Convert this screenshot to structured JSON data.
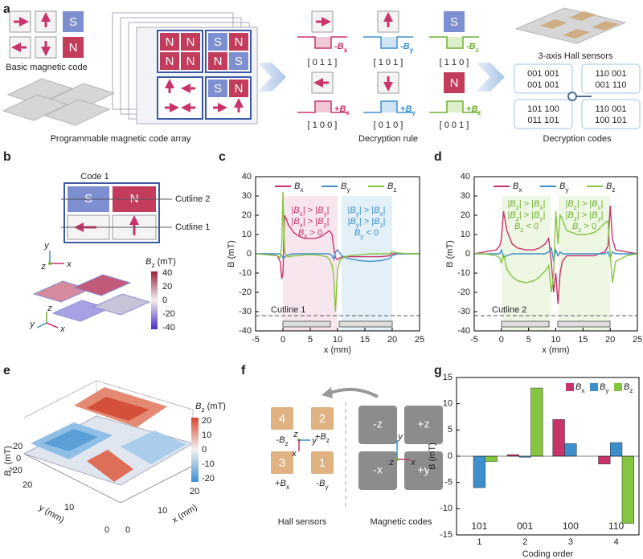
{
  "panel_labels": {
    "a": "a",
    "b": "b",
    "c": "c",
    "d": "d",
    "e": "e",
    "f": "f",
    "g": "g"
  },
  "panel_a": {
    "basic_code_letters": [
      "S",
      "N"
    ],
    "basic_code_label": "Basic magnetic code",
    "array_letters": [
      "N",
      "N",
      "N",
      "N",
      "S",
      "N",
      "N",
      "S",
      "S",
      "N"
    ],
    "array_label": "Programmable magnetic code array",
    "rule_letters": [
      "S",
      "N"
    ],
    "rule_field_labels": [
      "-Bx",
      "-By",
      "-Bz",
      "+Bx",
      "+By",
      "+Bz"
    ],
    "rule_codes": [
      "[ 0 1 1 ]",
      "[ 1 0 1 ]",
      "[ 1 1 0 ]",
      "[ 1 0 0 ]",
      "[ 0 1 0 ]",
      "[ 0 0 1 ]"
    ],
    "rule_label": "Decryption rule",
    "sensor_label": "3-axis Hall sensors",
    "codes": [
      [
        "001 001",
        "001 001"
      ],
      [
        "110 001",
        "001 110"
      ],
      [
        "101 100",
        "011 101"
      ],
      [
        "110 001",
        "100 101"
      ]
    ],
    "codes_label": "Decryption codes"
  },
  "panel_b": {
    "code_title": "Code 1",
    "letters": [
      "S",
      "N"
    ],
    "cutlines": [
      "Cutline 2",
      "Cutline 1"
    ],
    "axes": [
      "y",
      "z",
      "x"
    ],
    "axes_3d": [
      "z",
      "y",
      "x"
    ],
    "colorbar_label": "Bz (mT)",
    "colorbar_ticks": [
      "40",
      "20",
      "0",
      "-20",
      "-40"
    ]
  },
  "panel_e": {
    "colorbar_label": "Bz (mT)",
    "colorbar_ticks": [
      "20",
      "10",
      "0",
      "-10",
      "-20"
    ],
    "z_label": "Bz (mT)",
    "z_ticks": [
      "20",
      "0",
      "-20"
    ],
    "y_label": "y (mm)",
    "y_ticks": [
      "20",
      "10",
      "0"
    ],
    "x_label": "x (mm)",
    "x_ticks": [
      "0",
      "10",
      "20"
    ]
  },
  "panel_f": {
    "sensors": [
      {
        "number": "4",
        "field": "-Bz"
      },
      {
        "number": "2",
        "field": "+Bz"
      },
      {
        "number": "3",
        "field": "+Bx"
      },
      {
        "number": "1",
        "field": "-By"
      }
    ],
    "sensor_axes": [
      "z",
      "y",
      "x"
    ],
    "codes": [
      "-z",
      "+z",
      "-x",
      "+y"
    ],
    "code_axes": [
      "y",
      "z",
      "x"
    ],
    "sensors_label": "Hall sensors",
    "codes_label": "Magnetic codes"
  },
  "chart_data": [
    {
      "type": "line",
      "xlabel": "x (mm)",
      "ylabel": "B (mT)",
      "annotations": [
        "|Bx| > |By|",
        "|Bx| > |Bz|",
        "Bx > 0",
        "|By| > |Bx|",
        "|By| > |Bz|",
        "By < 0",
        "Cutline 1"
      ],
      "x": [
        -5,
        -3,
        -1,
        -0.5,
        -0.2,
        0,
        0.3,
        0.6,
        1,
        2,
        3,
        4,
        5,
        6,
        7,
        8,
        8.5,
        9,
        9.3,
        9.6,
        10,
        10.5,
        11,
        12,
        14,
        16,
        18,
        19.5,
        20,
        21,
        23,
        25
      ],
      "series": [
        {
          "name": "Bx",
          "color": "#c8336b",
          "values": [
            0,
            0,
            -1,
            -4,
            -13,
            -10,
            20,
            18,
            15,
            11,
            9,
            8,
            8,
            8,
            9,
            11,
            12,
            10,
            3,
            -2,
            -3,
            -2,
            -1.5,
            -1.5,
            -1.5,
            -1.5,
            -1.5,
            -1,
            0,
            0,
            0,
            0
          ]
        },
        {
          "name": "By",
          "color": "#3d8fcc",
          "values": [
            0,
            0,
            0,
            0,
            -1,
            -2,
            -2,
            -1,
            -0.5,
            0,
            0,
            0,
            0,
            0,
            0,
            0,
            0,
            -1,
            -3,
            1,
            2,
            0,
            -1.5,
            -2.5,
            -3.5,
            -4,
            -3.5,
            -2.5,
            -1,
            0,
            0,
            0
          ]
        },
        {
          "name": "Bz",
          "color": "#86c540",
          "values": [
            0,
            -0.5,
            -1,
            -2,
            5,
            32,
            2,
            -1,
            -1.5,
            -1,
            -1,
            -0.5,
            -0.5,
            -0.5,
            -1,
            -1.5,
            -3,
            -6,
            -12,
            -30,
            -8,
            -3,
            -2,
            -1,
            -0.5,
            0,
            0,
            0,
            1,
            0.5,
            0,
            0
          ]
        }
      ],
      "xlim": [
        -5,
        25
      ],
      "xticks": [
        -5,
        0,
        5,
        10,
        15,
        20,
        25
      ],
      "ylim": [
        -40,
        40
      ],
      "yticks": [
        -40,
        -30,
        -20,
        -10,
        0,
        10,
        20,
        30,
        40
      ],
      "grid": false,
      "legend": "top"
    },
    {
      "type": "line",
      "xlabel": "x (mm)",
      "ylabel": "B (mT)",
      "annotations": [
        "|Bz| > |Bx|",
        "|Bz| > |By|",
        "Bz < 0",
        "|Bz| > |Bx|",
        "|Bz| > |By|",
        "Bz > 0",
        "Cutline 2"
      ],
      "x": [
        -5,
        -3,
        -1,
        -0.3,
        0,
        0.4,
        1,
        2,
        3,
        4.5,
        6,
        7,
        8,
        8.7,
        9.2,
        9.6,
        10,
        10.4,
        10.8,
        11.2,
        12,
        14,
        15.5,
        17,
        18,
        19,
        19.6,
        20,
        20.4,
        21,
        23,
        25
      ],
      "series": [
        {
          "name": "Bx",
          "color": "#c8336b",
          "values": [
            0,
            1,
            2,
            4,
            8,
            22,
            12,
            5,
            3,
            2,
            2,
            3,
            5,
            8,
            -5,
            -20,
            -10,
            -26,
            -10,
            -4,
            -1,
            -1,
            -1,
            -1,
            0,
            1,
            4,
            25,
            8,
            2,
            1,
            0
          ]
        },
        {
          "name": "By",
          "color": "#3d8fcc",
          "values": [
            0,
            0,
            0,
            0,
            2,
            -2,
            -1,
            0,
            0,
            0,
            0,
            0,
            0,
            1,
            3,
            -4,
            2,
            -1,
            1,
            0,
            0,
            0,
            0,
            0,
            0,
            0,
            1,
            -2,
            1,
            0,
            0,
            0
          ]
        },
        {
          "name": "Bz",
          "color": "#86c540",
          "values": [
            0,
            0,
            -1,
            -2,
            -5,
            0,
            -8,
            -12,
            -14,
            -15,
            -14,
            -12,
            -9,
            -6,
            -20,
            -10,
            22,
            5,
            20,
            18,
            12,
            10,
            10,
            11,
            13,
            16,
            17,
            0,
            -15,
            -4,
            -1,
            0
          ]
        }
      ],
      "xlim": [
        -5,
        25
      ],
      "xticks": [
        -5,
        0,
        5,
        10,
        15,
        20,
        25
      ],
      "ylim": [
        -40,
        40
      ],
      "yticks": [
        -40,
        -30,
        -20,
        -10,
        0,
        10,
        20,
        30,
        40
      ],
      "grid": false,
      "legend": "top"
    },
    {
      "type": "bar",
      "xlabel": "Coding order",
      "ylabel": "B (mT)",
      "categories": [
        "1",
        "2",
        "3",
        "4"
      ],
      "code_labels": [
        "101",
        "001",
        "100",
        "110"
      ],
      "series": [
        {
          "name": "Bx",
          "color": "#c8336b",
          "values": [
            0,
            0.3,
            7,
            -1.5
          ]
        },
        {
          "name": "By",
          "color": "#3d8fcc",
          "values": [
            -6,
            -0.2,
            2.4,
            2.6
          ]
        },
        {
          "name": "Bz",
          "color": "#86c540",
          "values": [
            -1,
            13,
            0,
            -12.8
          ]
        }
      ],
      "ylim": [
        -15,
        15
      ],
      "yticks": [
        -15,
        -10,
        -5,
        0,
        5,
        10,
        15
      ],
      "grid": false,
      "legend": "top right"
    }
  ]
}
